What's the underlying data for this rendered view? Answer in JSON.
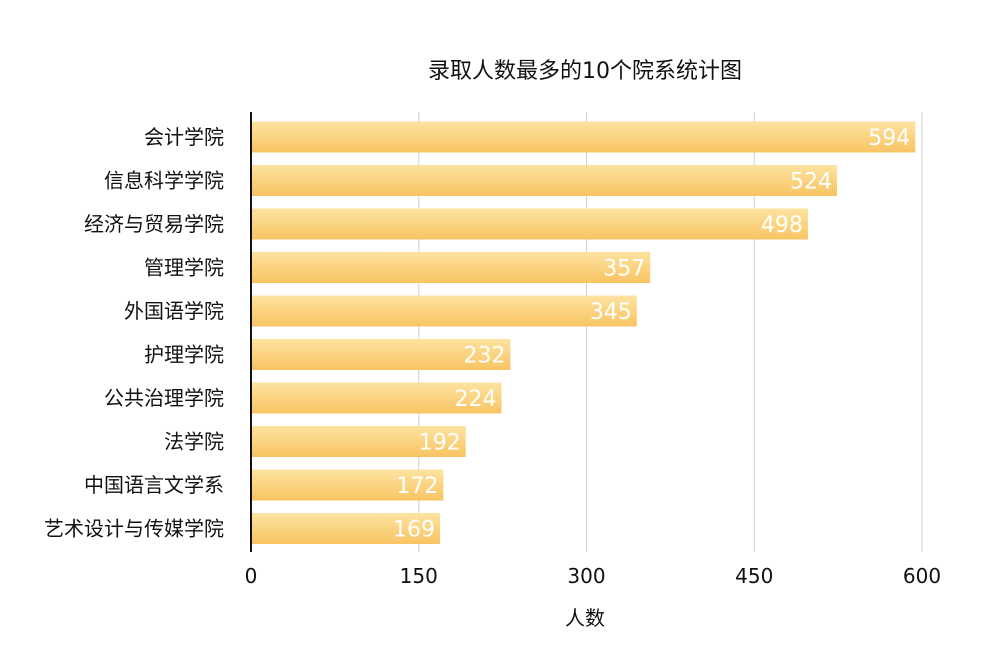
{
  "chart_data": {
    "type": "bar",
    "orientation": "horizontal",
    "title": "录取人数最多的10个院系统计图",
    "xlabel": "人数",
    "ylabel": "",
    "categories": [
      "会计学院",
      "信息科学学院",
      "经济与贸易学院",
      "管理学院",
      "外国语学院",
      "护理学院",
      "公共治理学院",
      "法学院",
      "中国语言文学系",
      "艺术设计与传媒学院"
    ],
    "values": [
      594,
      524,
      498,
      357,
      345,
      232,
      224,
      192,
      172,
      169
    ],
    "xlim": [
      0,
      600
    ],
    "xticks": [
      "0",
      "150",
      "300",
      "450",
      "600"
    ],
    "grid": "vertical",
    "data_labels": true,
    "bar_color_top": "#fde3a0",
    "bar_color_bottom": "#f8c462",
    "value_label_color": "#ffffff"
  }
}
